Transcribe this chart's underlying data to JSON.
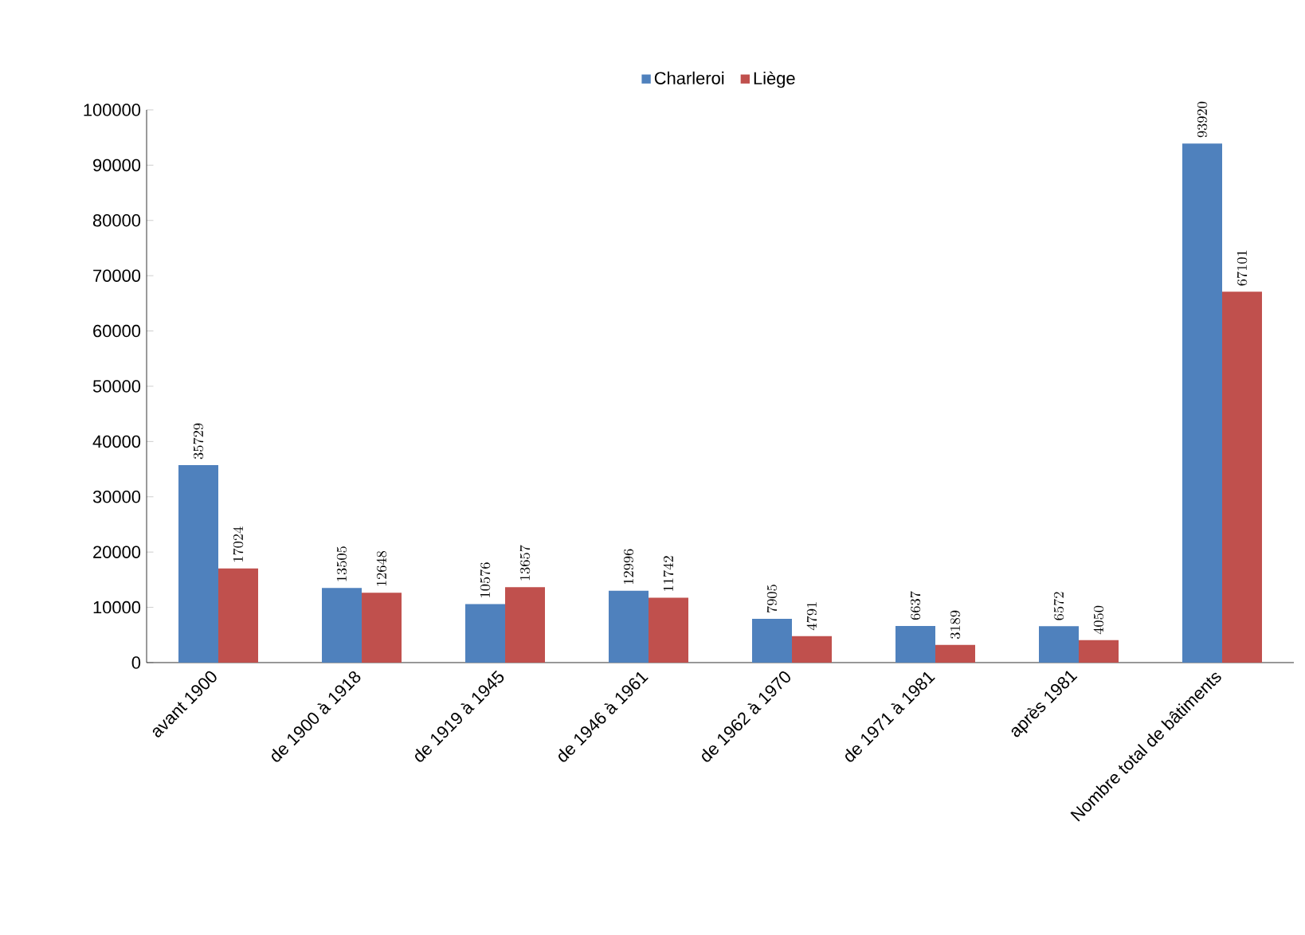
{
  "chart_data": {
    "type": "bar",
    "categories": [
      "avant 1900",
      "de 1900 à 1918",
      "de 1919 à 1945",
      "de 1946 à 1961",
      "de 1962 à 1970",
      "de 1971 à 1981",
      "après 1981",
      "Nombre total de bâtiments"
    ],
    "series": [
      {
        "name": "Charleroi",
        "color": "#4f81bd",
        "values": [
          35729,
          13505,
          10576,
          12996,
          7905,
          6637,
          6572,
          93920
        ]
      },
      {
        "name": "Liège",
        "color": "#c0504d",
        "values": [
          17024,
          12648,
          13657,
          11742,
          4791,
          3189,
          4050,
          67101
        ]
      }
    ],
    "ylim": [
      0,
      100000
    ],
    "yticks": [
      0,
      10000,
      20000,
      30000,
      40000,
      50000,
      60000,
      70000,
      80000,
      90000,
      100000
    ],
    "data_labels": true,
    "legend": "top"
  }
}
